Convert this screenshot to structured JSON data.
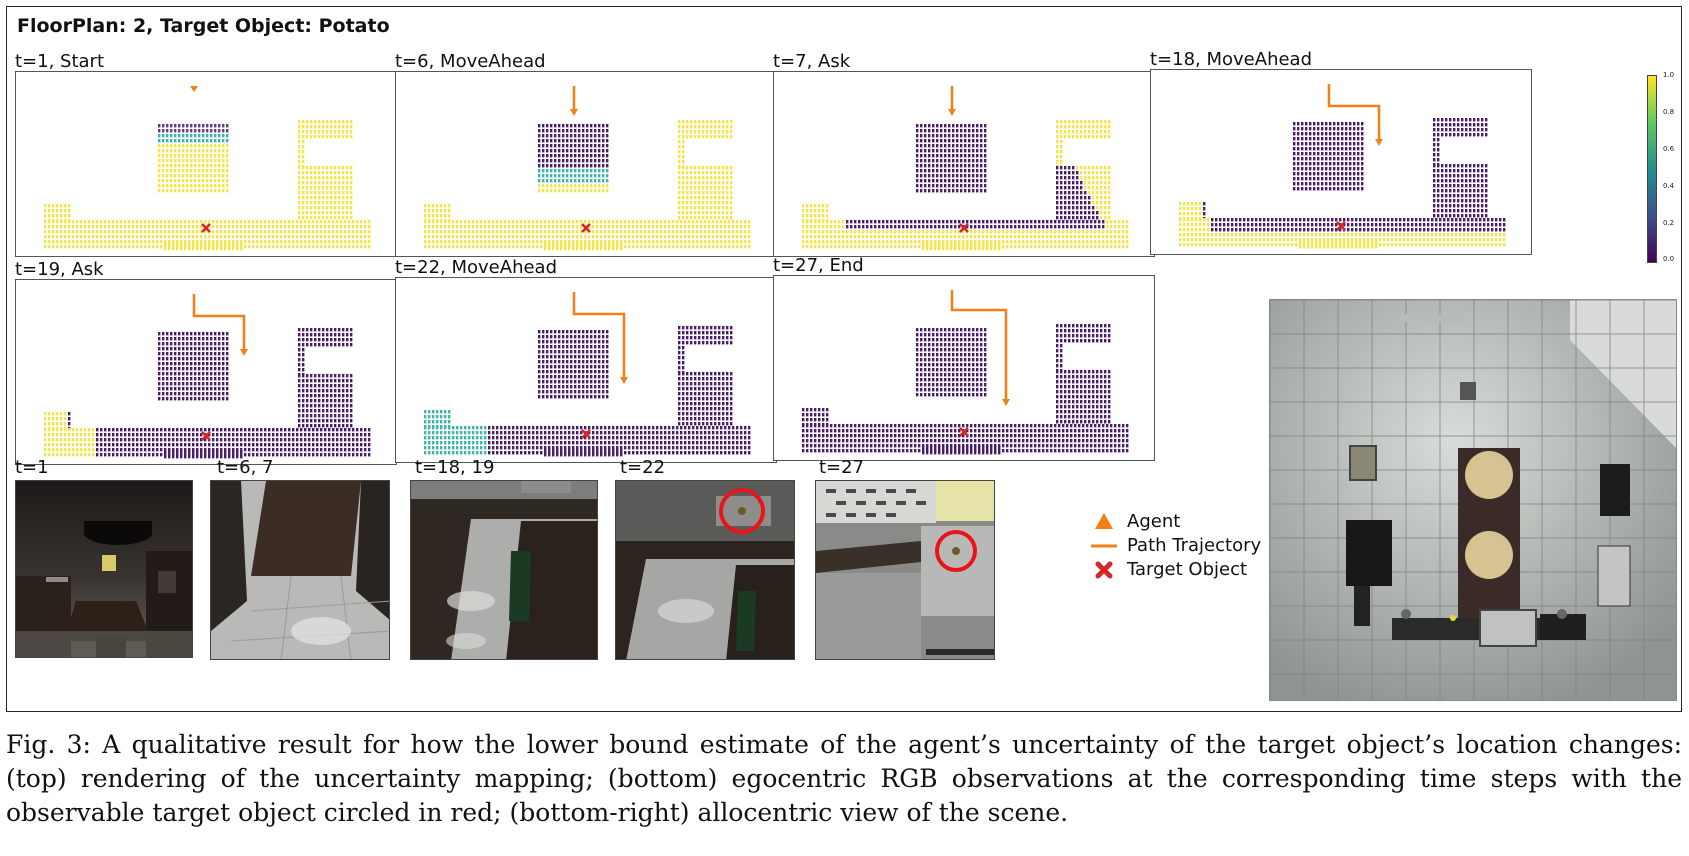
{
  "figure": {
    "title": "FloorPlan: 2, Target Object: Potato",
    "maps": [
      {
        "label": "t=1, Start",
        "step": 1,
        "agent_path": "start"
      },
      {
        "label": "t=6, MoveAhead",
        "step": 6,
        "agent_path": "down"
      },
      {
        "label": "t=7, Ask",
        "step": 7,
        "agent_path": "down"
      },
      {
        "label": "t=18, MoveAhead",
        "step": 18,
        "agent_path": "turn"
      },
      {
        "label": "t=19, Ask",
        "step": 19,
        "agent_path": "turn"
      },
      {
        "label": "t=22, MoveAhead",
        "step": 22,
        "agent_path": "turn"
      },
      {
        "label": "t=27, End",
        "step": 27,
        "agent_path": "turn"
      }
    ],
    "colorbar": {
      "ticks": [
        "1.0",
        "0.8",
        "0.6",
        "0.4",
        "0.2",
        "0.0"
      ],
      "colors": [
        "#440154",
        "#3b528b",
        "#21918c",
        "#5ec962",
        "#fde725"
      ]
    },
    "observations": [
      {
        "label": "t=1"
      },
      {
        "label": "t=6, 7"
      },
      {
        "label": "t=18, 19"
      },
      {
        "label": "t=22",
        "target_circled": true
      },
      {
        "label": "t=27",
        "target_circled": true
      }
    ],
    "legend": [
      {
        "label": "Agent",
        "icon": "triangle-icon",
        "color": "#f57f17"
      },
      {
        "label": "Path Trajectory",
        "icon": "line-icon",
        "color": "#f57f17"
      },
      {
        "label": "Target Object",
        "icon": "cross-icon",
        "color": "#d62728"
      }
    ],
    "allocentric_view": {
      "icon": "kitchen-topview"
    }
  },
  "caption": "Fig. 3: A qualitative result for how the lower bound estimate of the agent’s uncertainty of the target object’s location changes: (top) rendering of the uncertainty mapping; (bottom) egocentric RGB observations at the corresponding time steps with the observable target object circled in red; (bottom-right) allocentric view of the scene."
}
